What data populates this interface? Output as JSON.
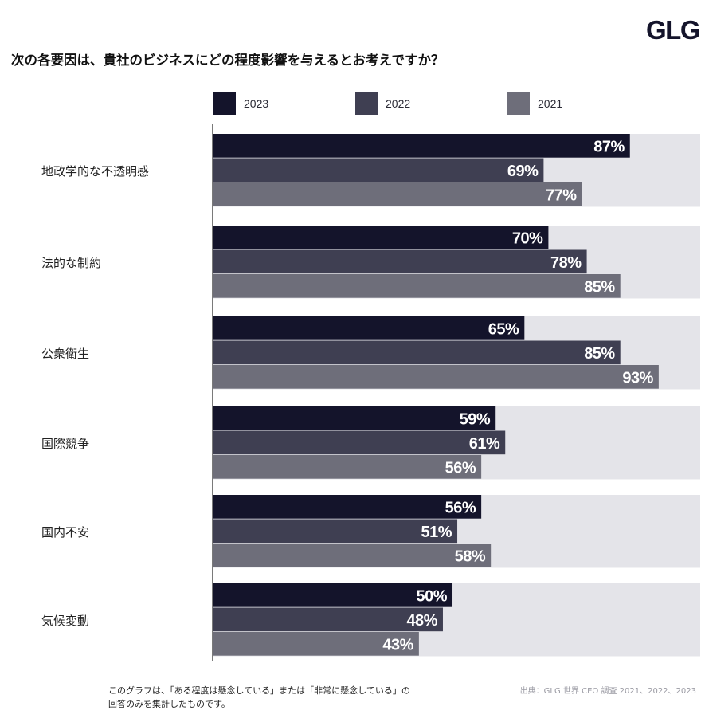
{
  "logo": "GLG",
  "title": "次の各要因は、貴社のビジネスにどの程度影響を与えるとお考えですか？",
  "footnote": {
    "line1": "このグラフは、「ある程度は懸念している」または「非常に懸念している」の",
    "line2": "回答のみを集計したものです。"
  },
  "source": "出典：GLG 世界 CEO 調査 2021、2022、2023",
  "colors": {
    "2023": "#14142b",
    "2022": "#3f3f52",
    "2021": "#6e6e7a",
    "track": "#e4e4e9",
    "label": "#ffffff"
  },
  "chart_data": {
    "type": "bar",
    "orientation": "horizontal",
    "xlim": [
      0,
      100
    ],
    "value_suffix": "%",
    "legend_position": "top",
    "categories": [
      "地政学的な不透明感",
      "法的な制約",
      "公衆衛生",
      "国際競争",
      "国内不安",
      "気候変動"
    ],
    "series": [
      {
        "name": "2023",
        "values": [
          87,
          70,
          65,
          59,
          56,
          50
        ]
      },
      {
        "name": "2022",
        "values": [
          69,
          78,
          85,
          61,
          51,
          48
        ]
      },
      {
        "name": "2021",
        "values": [
          77,
          85,
          93,
          56,
          58,
          43
        ]
      }
    ]
  }
}
